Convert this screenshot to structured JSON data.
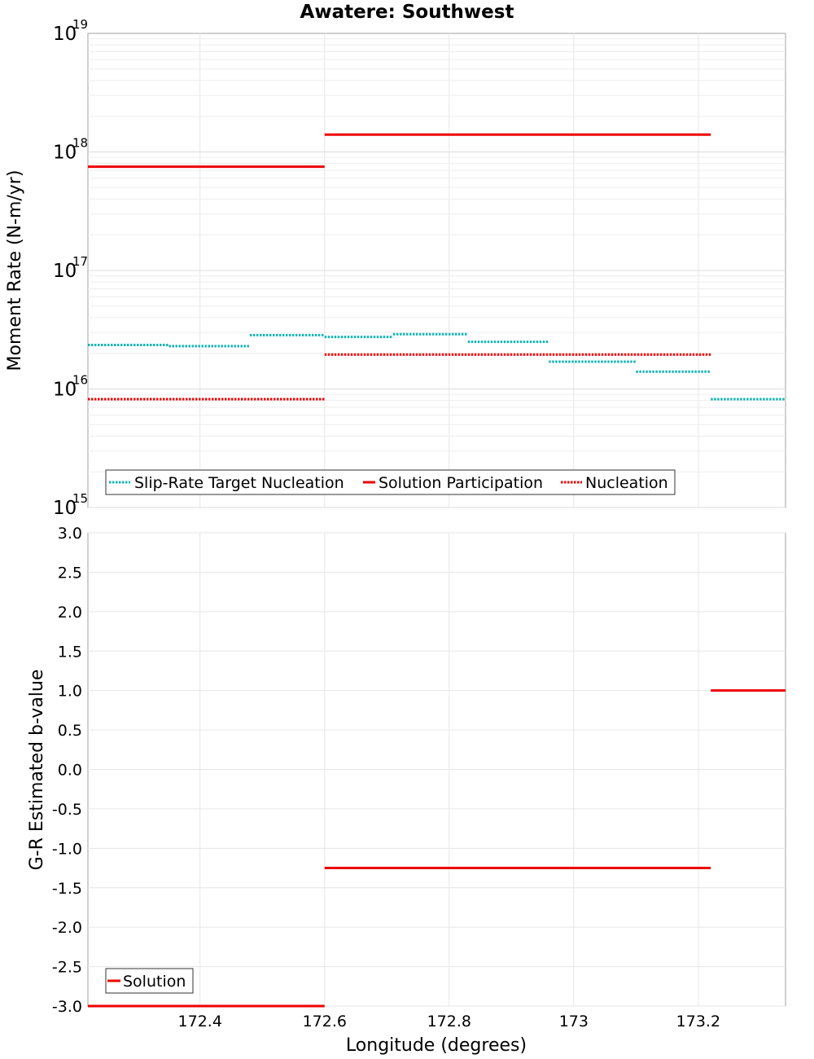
{
  "chart_data": [
    {
      "type": "line",
      "title": "Awatere: Southwest",
      "xlabel": "",
      "ylabel": "Moment Rate (N-m/yr)",
      "yscale": "log",
      "ylim": [
        1000000000000000.0,
        1e+19
      ],
      "xlim": [
        172.22,
        173.34
      ],
      "y_tick_labels": [
        {
          "base": "10",
          "exp": "15",
          "value": 1000000000000000.0
        },
        {
          "base": "10",
          "exp": "16",
          "value": 1e+16
        },
        {
          "base": "10",
          "exp": "17",
          "value": 1e+17
        },
        {
          "base": "10",
          "exp": "18",
          "value": 1e+18
        },
        {
          "base": "10",
          "exp": "19",
          "value": 1e+19
        }
      ],
      "grid": true,
      "legend_position": "bottom-left",
      "series": [
        {
          "name": "Slip-Rate Target Nucleation",
          "color": "#16b4b4",
          "style": "dotted",
          "segments": [
            {
              "x": [
                172.22,
                172.35
              ],
              "y": 2.35e+16
            },
            {
              "x": [
                172.35,
                172.48
              ],
              "y": 2.3e+16
            },
            {
              "x": [
                172.48,
                172.6
              ],
              "y": 2.85e+16
            },
            {
              "x": [
                172.6,
                172.71
              ],
              "y": 2.75e+16
            },
            {
              "x": [
                172.71,
                172.83
              ],
              "y": 2.9e+16
            },
            {
              "x": [
                172.83,
                172.96
              ],
              "y": 2.5e+16
            },
            {
              "x": [
                172.96,
                173.1
              ],
              "y": 1.7e+16
            },
            {
              "x": [
                173.1,
                173.22
              ],
              "y": 1.4e+16
            },
            {
              "x": [
                173.22,
                173.34
              ],
              "y": 8200000000000000.0
            }
          ]
        },
        {
          "name": "Solution Participation",
          "color": "#ee0000",
          "style": "solid",
          "segments": [
            {
              "x": [
                172.22,
                172.6
              ],
              "y": 7.5e+17
            },
            {
              "x": [
                172.6,
                173.22
              ],
              "y": 1.4e+18
            }
          ]
        },
        {
          "name": "Nucleation",
          "color": "#ee0000",
          "style": "dotted",
          "segments": [
            {
              "x": [
                172.22,
                172.6
              ],
              "y": 8200000000000000.0
            },
            {
              "x": [
                172.6,
                173.22
              ],
              "y": 1.95e+16
            }
          ]
        }
      ]
    },
    {
      "type": "line",
      "title": "",
      "xlabel": "Longitude (degrees)",
      "ylabel": "G-R Estimated b-value",
      "ylim": [
        -3.0,
        3.0
      ],
      "xlim": [
        172.22,
        173.34
      ],
      "x_ticks": [
        172.4,
        172.6,
        172.8,
        173.0,
        173.2
      ],
      "x_tick_labels": [
        "172.4",
        "172.6",
        "172.8",
        "173",
        "173.2"
      ],
      "y_ticks": [
        3.0,
        2.5,
        2.0,
        1.5,
        1.0,
        0.5,
        0.0,
        -0.5,
        -1.0,
        -1.5,
        -2.0,
        -2.5,
        -3.0
      ],
      "y_tick_labels": [
        "3.0",
        "2.5",
        "2.0",
        "1.5",
        "1.0",
        "0.5",
        "0.0",
        "-0.5",
        "-1.0",
        "-1.5",
        "-2.0",
        "-2.5",
        "-3.0"
      ],
      "grid": true,
      "legend_position": "bottom-left",
      "series": [
        {
          "name": "Solution",
          "color": "#ee0000",
          "style": "solid",
          "segments": [
            {
              "x": [
                172.22,
                172.6
              ],
              "y": -3.0
            },
            {
              "x": [
                172.6,
                173.22
              ],
              "y": -1.25
            },
            {
              "x": [
                173.22,
                173.34
              ],
              "y": 1.0
            }
          ]
        }
      ]
    }
  ]
}
